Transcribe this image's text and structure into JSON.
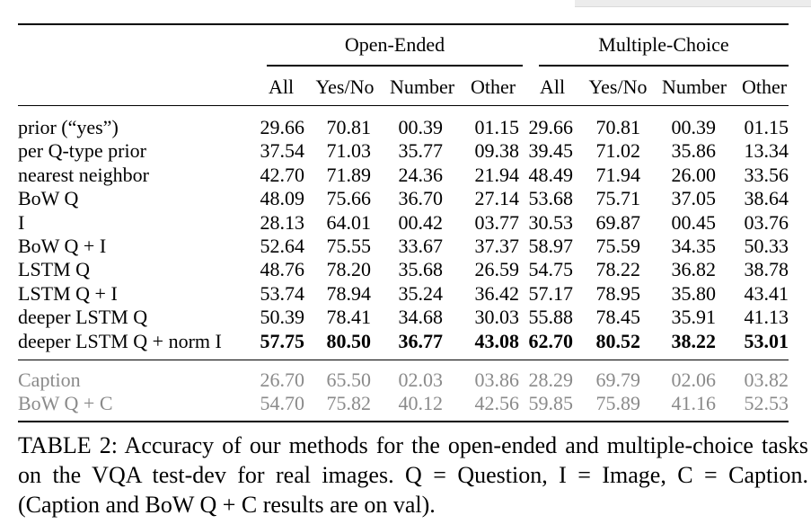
{
  "table": {
    "group_headers": [
      "Open-Ended",
      "Multiple-Choice"
    ],
    "column_headers": [
      "All",
      "Yes/No",
      "Number",
      "Other",
      "All",
      "Yes/No",
      "Number",
      "Other"
    ],
    "rows": [
      {
        "method": "prior (“yes”)",
        "values": [
          "29.66",
          "70.81",
          "00.39",
          "01.15",
          "29.66",
          "70.81",
          "00.39",
          "01.15"
        ]
      },
      {
        "method": "per Q-type prior",
        "values": [
          "37.54",
          "71.03",
          "35.77",
          "09.38",
          "39.45",
          "71.02",
          "35.86",
          "13.34"
        ]
      },
      {
        "method": "nearest neighbor",
        "values": [
          "42.70",
          "71.89",
          "24.36",
          "21.94",
          "48.49",
          "71.94",
          "26.00",
          "33.56"
        ]
      },
      {
        "method": "BoW Q",
        "values": [
          "48.09",
          "75.66",
          "36.70",
          "27.14",
          "53.68",
          "75.71",
          "37.05",
          "38.64"
        ]
      },
      {
        "method": "I",
        "values": [
          "28.13",
          "64.01",
          "00.42",
          "03.77",
          "30.53",
          "69.87",
          "00.45",
          "03.76"
        ]
      },
      {
        "method": "BoW Q + I",
        "values": [
          "52.64",
          "75.55",
          "33.67",
          "37.37",
          "58.97",
          "75.59",
          "34.35",
          "50.33"
        ]
      },
      {
        "method": "LSTM Q",
        "values": [
          "48.76",
          "78.20",
          "35.68",
          "26.59",
          "54.75",
          "78.22",
          "36.82",
          "38.78"
        ]
      },
      {
        "method": "LSTM Q + I",
        "values": [
          "53.74",
          "78.94",
          "35.24",
          "36.42",
          "57.17",
          "78.95",
          "35.80",
          "43.41"
        ]
      },
      {
        "method": "deeper LSTM Q",
        "values": [
          "50.39",
          "78.41",
          "34.68",
          "30.03",
          "55.88",
          "78.45",
          "35.91",
          "41.13"
        ]
      },
      {
        "method": "deeper LSTM Q + norm I",
        "values": [
          "57.75",
          "80.50",
          "36.77",
          "43.08",
          "62.70",
          "80.52",
          "38.22",
          "53.01"
        ]
      }
    ],
    "secondary_rows": [
      {
        "method": "Caption",
        "values": [
          "26.70",
          "65.50",
          "02.03",
          "03.86",
          "28.29",
          "69.79",
          "02.06",
          "03.82"
        ]
      },
      {
        "method": "BoW Q + C",
        "values": [
          "54.70",
          "75.82",
          "40.12",
          "42.56",
          "59.85",
          "75.89",
          "41.16",
          "52.53"
        ]
      }
    ]
  },
  "caption": "TABLE 2: Accuracy of our methods for the open-ended and multiple-choice tasks on the VQA test-dev for real images. Q = Question, I = Image, C = Caption. (Caption and BoW Q + C results are on val).",
  "colors": {
    "text": "#000000",
    "secondary_text": "#8a8a8a",
    "rule": "#000000"
  }
}
